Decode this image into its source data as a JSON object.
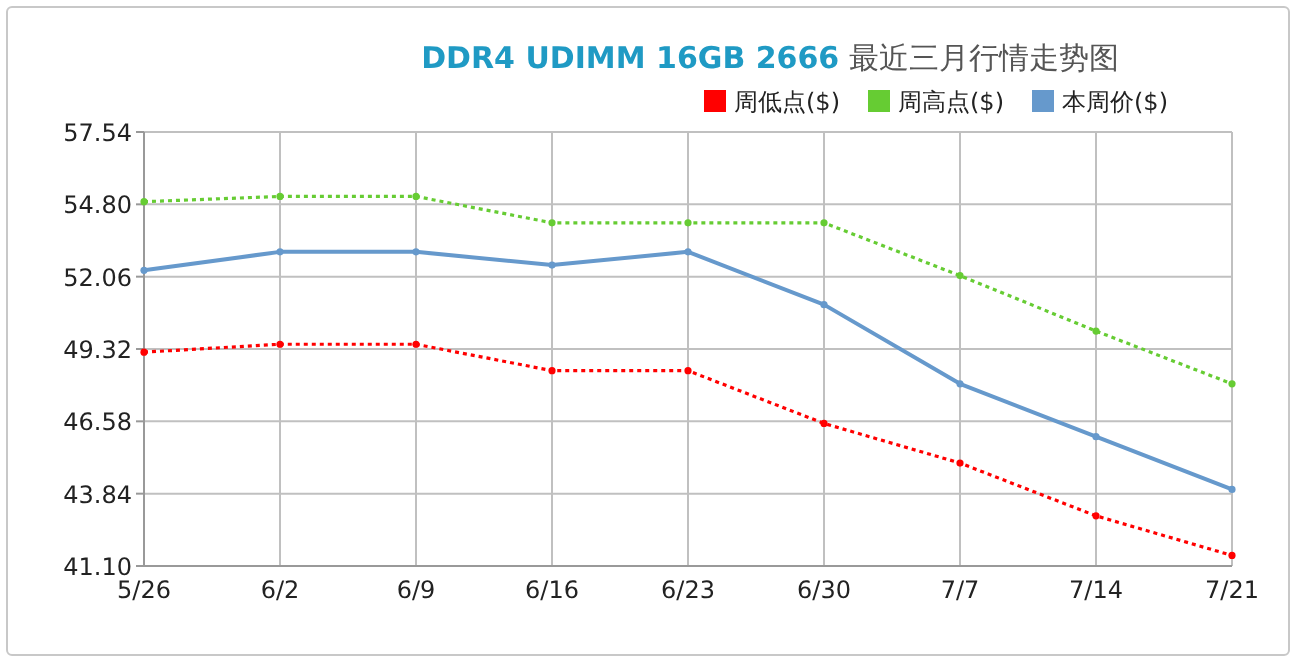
{
  "chart_data": {
    "type": "line",
    "title": "**DDR4 UDIMM 16GB 2666** 最近三月行情走势图",
    "categories": [
      "5/26",
      "6/2",
      "6/9",
      "6/16",
      "6/23",
      "6/30",
      "7/7",
      "7/14",
      "7/21"
    ],
    "series": [
      {
        "name": "周低点($)",
        "color": "#ff0000",
        "line_style": "dotted",
        "values": [
          49.2,
          49.5,
          49.5,
          48.5,
          48.5,
          46.5,
          45.0,
          43.0,
          41.5
        ]
      },
      {
        "name": "周高点($)",
        "color": "#66cc33",
        "line_style": "dotted",
        "values": [
          54.9,
          55.1,
          55.1,
          54.1,
          54.1,
          54.1,
          52.1,
          50.0,
          48.0
        ]
      },
      {
        "name": "本周价($)",
        "color": "#6699cc",
        "line_style": "solid",
        "values": [
          52.3,
          53.0,
          53.0,
          52.5,
          53.0,
          51.0,
          48.0,
          46.0,
          44.0
        ]
      }
    ],
    "ylim": [
      41.1,
      57.54
    ],
    "yticks": [
      {
        "value": 41.1,
        "label": "41.10"
      },
      {
        "value": 43.84,
        "label": "43.84"
      },
      {
        "value": 46.58,
        "label": "46.58"
      },
      {
        "value": 49.32,
        "label": "49.32"
      },
      {
        "value": 52.06,
        "label": "52.06"
      },
      {
        "value": 54.8,
        "label": "54.80"
      },
      {
        "value": 57.54,
        "label": "57.54"
      }
    ],
    "grid": true,
    "legend": "top right",
    "marker": "circle"
  }
}
